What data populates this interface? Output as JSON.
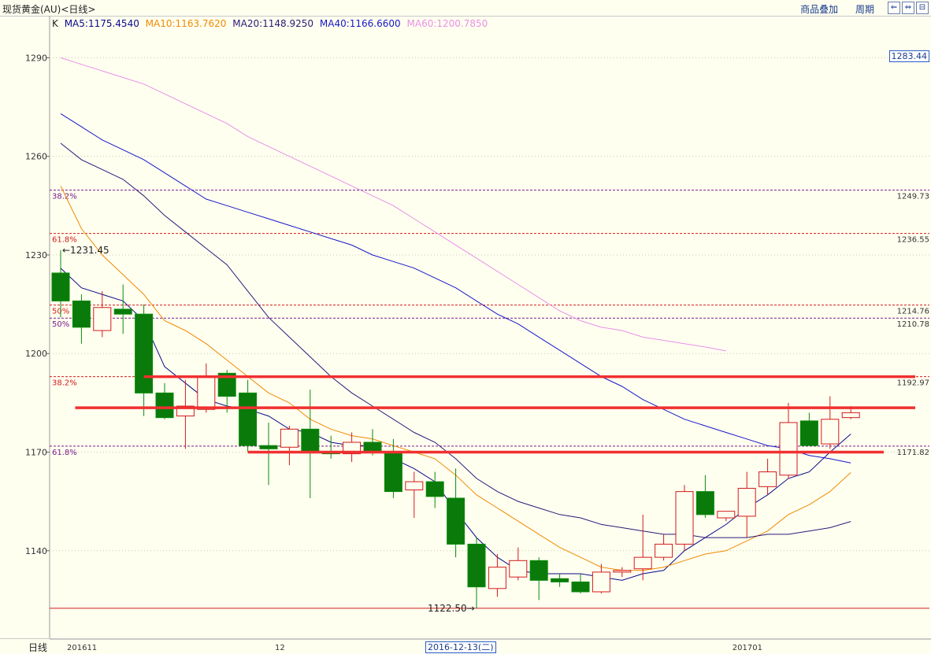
{
  "header": {
    "title": "现货黄金(AU)<日线>",
    "overlay_label": "商品叠加",
    "period_label": "周期",
    "window_buttons": [
      "⇐",
      "⇔",
      "⊟"
    ]
  },
  "legend": {
    "prefix": "K",
    "items": [
      {
        "text": "MA5:1175.4540",
        "color": "#0a0a8a"
      },
      {
        "text": "MA10:1163.7620",
        "color": "#f08a00"
      },
      {
        "text": "MA20:1148.9250",
        "color": "#2a1a78"
      },
      {
        "text": "MA40:1166.6600",
        "color": "#1818c8"
      },
      {
        "text": "MA60:1200.7850",
        "color": "#e890e8"
      }
    ]
  },
  "footer": {
    "period": "日线",
    "cursor_date": "2016-12-13(二)"
  },
  "right_price_box": "1283.44",
  "chart_data": {
    "type": "candlestick",
    "ylim": [
      1116,
      1298
    ],
    "yticks": [
      1140,
      1170,
      1200,
      1230,
      1260,
      1290
    ],
    "x_labels": [
      {
        "index": 0,
        "text": "201611"
      },
      {
        "index": 10,
        "text": "12"
      },
      {
        "index": 32,
        "text": "201701"
      }
    ],
    "candles": [
      {
        "open": 1224.5,
        "high": 1231.5,
        "low": 1211,
        "close": 1216
      },
      {
        "open": 1216,
        "high": 1218,
        "low": 1203,
        "close": 1208
      },
      {
        "open": 1207,
        "high": 1219,
        "low": 1205,
        "close": 1214
      },
      {
        "open": 1213.5,
        "high": 1221,
        "low": 1206,
        "close": 1212
      },
      {
        "open": 1212,
        "high": 1215,
        "low": 1181,
        "close": 1188
      },
      {
        "open": 1188,
        "high": 1191,
        "low": 1180,
        "close": 1180.5
      },
      {
        "open": 1181,
        "high": 1192,
        "low": 1171,
        "close": 1184
      },
      {
        "open": 1183,
        "high": 1197,
        "low": 1182,
        "close": 1193
      },
      {
        "open": 1194,
        "high": 1195,
        "low": 1182,
        "close": 1187
      },
      {
        "open": 1188,
        "high": 1192,
        "low": 1170,
        "close": 1172
      },
      {
        "open": 1172,
        "high": 1179,
        "low": 1160,
        "close": 1171
      },
      {
        "open": 1171.5,
        "high": 1178,
        "low": 1166,
        "close": 1177
      },
      {
        "open": 1177,
        "high": 1189,
        "low": 1156,
        "close": 1170
      },
      {
        "open": 1170,
        "high": 1175,
        "low": 1168,
        "close": 1169.5
      },
      {
        "open": 1169.5,
        "high": 1176,
        "low": 1167,
        "close": 1173
      },
      {
        "open": 1173,
        "high": 1177,
        "low": 1169,
        "close": 1170
      },
      {
        "open": 1170,
        "high": 1174,
        "low": 1156,
        "close": 1158
      },
      {
        "open": 1158.5,
        "high": 1164,
        "low": 1150,
        "close": 1161
      },
      {
        "open": 1161,
        "high": 1164,
        "low": 1153,
        "close": 1156.5
      },
      {
        "open": 1156,
        "high": 1165,
        "low": 1138,
        "close": 1142
      },
      {
        "open": 1142,
        "high": 1144,
        "low": 1122.5,
        "close": 1129
      },
      {
        "open": 1128.5,
        "high": 1139,
        "low": 1126,
        "close": 1135
      },
      {
        "open": 1132,
        "high": 1141,
        "low": 1131,
        "close": 1137
      },
      {
        "open": 1137,
        "high": 1138,
        "low": 1125,
        "close": 1131
      },
      {
        "open": 1131.5,
        "high": 1133,
        "low": 1129,
        "close": 1130.5
      },
      {
        "open": 1130.5,
        "high": 1133,
        "low": 1127,
        "close": 1127.5
      },
      {
        "open": 1127.5,
        "high": 1136,
        "low": 1127,
        "close": 1133.5
      },
      {
        "open": 1133.5,
        "high": 1135,
        "low": 1132,
        "close": 1134
      },
      {
        "open": 1134.5,
        "high": 1151,
        "low": 1131,
        "close": 1138
      },
      {
        "open": 1138,
        "high": 1145,
        "low": 1137,
        "close": 1142
      },
      {
        "open": 1142,
        "high": 1160,
        "low": 1140,
        "close": 1158
      },
      {
        "open": 1158,
        "high": 1163,
        "low": 1150,
        "close": 1151
      },
      {
        "open": 1150,
        "high": 1152,
        "low": 1149,
        "close": 1152
      },
      {
        "open": 1150.5,
        "high": 1164,
        "low": 1144,
        "close": 1159
      },
      {
        "open": 1159.5,
        "high": 1168,
        "low": 1157,
        "close": 1164
      },
      {
        "open": 1163,
        "high": 1185,
        "low": 1162,
        "close": 1179
      },
      {
        "open": 1179.5,
        "high": 1182,
        "low": 1172,
        "close": 1172
      },
      {
        "open": 1172.5,
        "high": 1187,
        "low": 1171,
        "close": 1180
      },
      {
        "open": 1180.5,
        "high": 1184,
        "low": 1180,
        "close": 1182
      }
    ],
    "ma": [
      {
        "name": "MA5",
        "color": "#0a0a8a",
        "points": [
          [
            0,
            1226
          ],
          [
            1,
            1220
          ],
          [
            2,
            1218
          ],
          [
            3,
            1216
          ],
          [
            4,
            1210
          ],
          [
            5,
            1196
          ],
          [
            6,
            1191
          ],
          [
            7,
            1186
          ],
          [
            8,
            1184
          ],
          [
            9,
            1183
          ],
          [
            10,
            1181
          ],
          [
            11,
            1177
          ],
          [
            12,
            1176
          ],
          [
            13,
            1173
          ],
          [
            14,
            1172
          ],
          [
            15,
            1172
          ],
          [
            16,
            1168
          ],
          [
            17,
            1165
          ],
          [
            18,
            1161
          ],
          [
            19,
            1152
          ],
          [
            20,
            1144
          ],
          [
            21,
            1138
          ],
          [
            22,
            1134
          ],
          [
            23,
            1133
          ],
          [
            24,
            1133
          ],
          [
            25,
            1133
          ],
          [
            26,
            1132
          ],
          [
            27,
            1131
          ],
          [
            28,
            1133
          ],
          [
            29,
            1134
          ],
          [
            30,
            1140
          ],
          [
            31,
            1144
          ],
          [
            32,
            1148
          ],
          [
            33,
            1153
          ],
          [
            34,
            1157
          ],
          [
            35,
            1162
          ],
          [
            36,
            1164
          ],
          [
            37,
            1170
          ],
          [
            38,
            1175.5
          ]
        ]
      },
      {
        "name": "MA10",
        "color": "#f08a00",
        "points": [
          [
            0,
            1251
          ],
          [
            1,
            1238
          ],
          [
            2,
            1230
          ],
          [
            3,
            1224
          ],
          [
            4,
            1218
          ],
          [
            5,
            1210
          ],
          [
            6,
            1207
          ],
          [
            7,
            1203
          ],
          [
            8,
            1198
          ],
          [
            9,
            1193
          ],
          [
            10,
            1188
          ],
          [
            11,
            1185
          ],
          [
            12,
            1180
          ],
          [
            13,
            1177
          ],
          [
            14,
            1175
          ],
          [
            15,
            1174
          ],
          [
            16,
            1172
          ],
          [
            17,
            1170
          ],
          [
            18,
            1168
          ],
          [
            19,
            1163
          ],
          [
            20,
            1157
          ],
          [
            21,
            1153
          ],
          [
            22,
            1149
          ],
          [
            23,
            1145
          ],
          [
            24,
            1141
          ],
          [
            25,
            1138
          ],
          [
            26,
            1135
          ],
          [
            27,
            1134
          ],
          [
            28,
            1134
          ],
          [
            29,
            1135
          ],
          [
            30,
            1137
          ],
          [
            31,
            1139
          ],
          [
            32,
            1140
          ],
          [
            33,
            1143
          ],
          [
            34,
            1146
          ],
          [
            35,
            1151
          ],
          [
            36,
            1154
          ],
          [
            37,
            1158
          ],
          [
            38,
            1163.8
          ]
        ]
      },
      {
        "name": "MA20",
        "color": "#2a1a78",
        "points": [
          [
            0,
            1264
          ],
          [
            1,
            1259
          ],
          [
            2,
            1256
          ],
          [
            3,
            1253
          ],
          [
            4,
            1248
          ],
          [
            5,
            1242
          ],
          [
            6,
            1237
          ],
          [
            7,
            1232
          ],
          [
            8,
            1227
          ],
          [
            9,
            1219
          ],
          [
            10,
            1211
          ],
          [
            11,
            1205
          ],
          [
            12,
            1199
          ],
          [
            13,
            1193
          ],
          [
            14,
            1188
          ],
          [
            15,
            1184
          ],
          [
            16,
            1180
          ],
          [
            17,
            1176
          ],
          [
            18,
            1173
          ],
          [
            19,
            1168
          ],
          [
            20,
            1162
          ],
          [
            21,
            1158
          ],
          [
            22,
            1155
          ],
          [
            23,
            1153
          ],
          [
            24,
            1151
          ],
          [
            25,
            1150
          ],
          [
            26,
            1148
          ],
          [
            27,
            1147
          ],
          [
            28,
            1146
          ],
          [
            29,
            1145
          ],
          [
            30,
            1145
          ],
          [
            31,
            1144
          ],
          [
            32,
            1144
          ],
          [
            33,
            1144
          ],
          [
            34,
            1145
          ],
          [
            35,
            1145
          ],
          [
            36,
            1146
          ],
          [
            37,
            1147
          ],
          [
            38,
            1148.9
          ]
        ]
      },
      {
        "name": "MA40",
        "color": "#1818c8",
        "points": [
          [
            0,
            1273
          ],
          [
            1,
            1269
          ],
          [
            2,
            1265
          ],
          [
            3,
            1262
          ],
          [
            4,
            1259
          ],
          [
            5,
            1255
          ],
          [
            6,
            1251
          ],
          [
            7,
            1247
          ],
          [
            8,
            1245
          ],
          [
            9,
            1243
          ],
          [
            10,
            1241
          ],
          [
            11,
            1239
          ],
          [
            12,
            1237
          ],
          [
            13,
            1235
          ],
          [
            14,
            1233
          ],
          [
            15,
            1230
          ],
          [
            16,
            1228
          ],
          [
            17,
            1226
          ],
          [
            18,
            1223
          ],
          [
            19,
            1220
          ],
          [
            20,
            1216
          ],
          [
            21,
            1212
          ],
          [
            22,
            1209
          ],
          [
            23,
            1205
          ],
          [
            24,
            1201
          ],
          [
            25,
            1197
          ],
          [
            26,
            1193
          ],
          [
            27,
            1190
          ],
          [
            28,
            1186
          ],
          [
            29,
            1183
          ],
          [
            30,
            1180
          ],
          [
            31,
            1178
          ],
          [
            32,
            1176
          ],
          [
            33,
            1174
          ],
          [
            34,
            1172
          ],
          [
            35,
            1171
          ],
          [
            36,
            1169
          ],
          [
            37,
            1168
          ],
          [
            38,
            1166.7
          ]
        ]
      },
      {
        "name": "MA60",
        "color": "#e890e8",
        "points": [
          [
            0,
            1290
          ],
          [
            1,
            1288
          ],
          [
            2,
            1286
          ],
          [
            3,
            1284
          ],
          [
            4,
            1282
          ],
          [
            5,
            1279
          ],
          [
            6,
            1276
          ],
          [
            7,
            1273
          ],
          [
            8,
            1270
          ],
          [
            9,
            1266
          ],
          [
            10,
            1263
          ],
          [
            11,
            1260
          ],
          [
            12,
            1257
          ],
          [
            13,
            1254
          ],
          [
            14,
            1251
          ],
          [
            15,
            1248
          ],
          [
            16,
            1245
          ],
          [
            17,
            1241
          ],
          [
            18,
            1237
          ],
          [
            19,
            1233
          ],
          [
            20,
            1229
          ],
          [
            21,
            1225
          ],
          [
            22,
            1221
          ],
          [
            23,
            1217
          ],
          [
            24,
            1213
          ],
          [
            25,
            1210
          ],
          [
            26,
            1208
          ],
          [
            27,
            1207
          ],
          [
            28,
            1205
          ],
          [
            29,
            1204
          ],
          [
            30,
            1203
          ],
          [
            31,
            1202
          ],
          [
            32,
            1200.8
          ]
        ]
      }
    ],
    "fib_lines": [
      {
        "value": 1249.73,
        "color": "#7a1a8a",
        "left_label": "38.2%",
        "right_label": "1249.73"
      },
      {
        "value": 1236.55,
        "color": "#d21a1a",
        "left_label": "61.8%",
        "right_label": "1236.55"
      },
      {
        "value": 1214.76,
        "color": "#d21a1a",
        "left_label": "50%",
        "right_label": "1214.76"
      },
      {
        "value": 1210.78,
        "color": "#7a1a8a",
        "left_label": "50%",
        "right_label": "1210.78"
      },
      {
        "value": 1192.97,
        "color": "#d21a1a",
        "left_label": "38.2%",
        "right_label": "1192.97"
      },
      {
        "value": 1171.82,
        "color": "#7a1a8a",
        "left_label": "61.8%",
        "right_label": "1171.82"
      }
    ],
    "resistance_lines": [
      {
        "value": 1192.97,
        "from": 4,
        "to": 1
      },
      {
        "value": 1183.5,
        "from": 0.7,
        "to": 1
      },
      {
        "value": 1170,
        "from": 9,
        "to": 0.95
      }
    ],
    "bottom_line": 1122.5,
    "annotations": [
      {
        "text": "1231.45",
        "index": 0,
        "value": 1231.45,
        "side": "right"
      },
      {
        "text": "1122.50",
        "index": 20,
        "value": 1122.5,
        "side": "left"
      }
    ]
  }
}
